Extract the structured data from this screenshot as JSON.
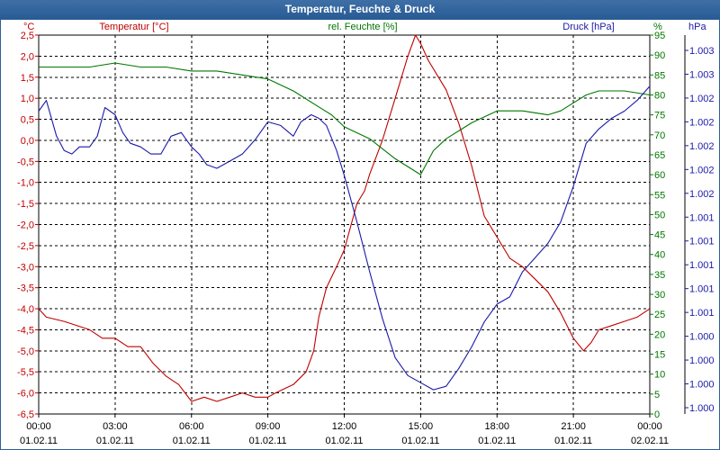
{
  "window": {
    "title": "Temperatur, Feuchte & Druck"
  },
  "chart_data": {
    "type": "line",
    "title": "Temperatur, Feuchte & Druck",
    "grid": true,
    "x_axis": {
      "ticks": [
        {
          "time": "00:00",
          "date": "01.02.11"
        },
        {
          "time": "03:00",
          "date": "01.02.11"
        },
        {
          "time": "06:00",
          "date": "01.02.11"
        },
        {
          "time": "09:00",
          "date": "01.02.11"
        },
        {
          "time": "12:00",
          "date": "01.02.11"
        },
        {
          "time": "15:00",
          "date": "01.02.11"
        },
        {
          "time": "18:00",
          "date": "01.02.11"
        },
        {
          "time": "21:00",
          "date": "01.02.11"
        },
        {
          "time": "00:00",
          "date": "02.02.11"
        }
      ],
      "range_hours": [
        0,
        24
      ]
    },
    "axes": {
      "temperature": {
        "unit": "°C",
        "label": "Temperatur [°C]",
        "color": "#c00000",
        "ylim": [
          -6.5,
          2.5
        ],
        "ticks": [
          "2,5",
          "2,0",
          "1,5",
          "1,0",
          "0,5",
          "0,0",
          "-0,5",
          "-1,0",
          "-1,5",
          "-2,0",
          "-2,5",
          "-3,0",
          "-3,5",
          "-4,0",
          "-4,5",
          "-5,0",
          "-5,5",
          "-6,0",
          "-6,5"
        ]
      },
      "humidity": {
        "unit": "%",
        "label": "rel. Feuchte [%]",
        "color": "#007700",
        "ylim": [
          0,
          95
        ],
        "ticks": [
          "95",
          "90",
          "85",
          "80",
          "75",
          "70",
          "65",
          "60",
          "55",
          "50",
          "45",
          "40",
          "35",
          "30",
          "25",
          "20",
          "15",
          "10",
          "5",
          "0"
        ]
      },
      "pressure": {
        "unit": "hPa",
        "label": "Druck [hPa]",
        "color": "#1a1aa8",
        "ylim": [
          0,
          1
        ],
        "ticks": [
          "1.003",
          "1.003",
          "1.002",
          "1.002",
          "1.002",
          "1.002",
          "1.002",
          "1.001",
          "1.001",
          "1.001",
          "1.001",
          "1.001",
          "1.000",
          "1.000",
          "1.000",
          "1.000"
        ]
      }
    },
    "series": [
      {
        "name": "Temperatur",
        "axis": "temperature",
        "color": "#c00000",
        "points": [
          [
            0,
            -4.0
          ],
          [
            0.3,
            -4.2
          ],
          [
            1,
            -4.3
          ],
          [
            2,
            -4.5
          ],
          [
            2.5,
            -4.7
          ],
          [
            3,
            -4.7
          ],
          [
            3.5,
            -4.9
          ],
          [
            4,
            -4.9
          ],
          [
            4.5,
            -5.3
          ],
          [
            5,
            -5.6
          ],
          [
            5.5,
            -5.8
          ],
          [
            6,
            -6.2
          ],
          [
            6.5,
            -6.1
          ],
          [
            7,
            -6.2
          ],
          [
            7.5,
            -6.1
          ],
          [
            8,
            -6.0
          ],
          [
            8.5,
            -6.1
          ],
          [
            9,
            -6.1
          ],
          [
            9.3,
            -6.0
          ],
          [
            10,
            -5.8
          ],
          [
            10.5,
            -5.5
          ],
          [
            10.8,
            -5.0
          ],
          [
            11,
            -4.2
          ],
          [
            11.3,
            -3.5
          ],
          [
            11.7,
            -3.0
          ],
          [
            12,
            -2.6
          ],
          [
            12.5,
            -1.5
          ],
          [
            12.8,
            -1.2
          ],
          [
            13,
            -0.8
          ],
          [
            13.5,
            0.0
          ],
          [
            14,
            1.0
          ],
          [
            14.5,
            2.0
          ],
          [
            14.8,
            2.5
          ],
          [
            15,
            2.3
          ],
          [
            15.3,
            1.9
          ],
          [
            15.7,
            1.5
          ],
          [
            16,
            1.2
          ],
          [
            16.5,
            0.4
          ],
          [
            17,
            -0.6
          ],
          [
            17.5,
            -1.8
          ],
          [
            18,
            -2.3
          ],
          [
            18.5,
            -2.8
          ],
          [
            19,
            -3.0
          ],
          [
            19.5,
            -3.3
          ],
          [
            20,
            -3.6
          ],
          [
            20.5,
            -4.1
          ],
          [
            21,
            -4.7
          ],
          [
            21.4,
            -5.0
          ],
          [
            21.7,
            -4.8
          ],
          [
            22,
            -4.5
          ],
          [
            22.5,
            -4.4
          ],
          [
            23,
            -4.3
          ],
          [
            23.5,
            -4.2
          ],
          [
            24,
            -4.0
          ]
        ]
      },
      {
        "name": "rel. Feuchte",
        "axis": "humidity",
        "color": "#007700",
        "points": [
          [
            0,
            87
          ],
          [
            1,
            87
          ],
          [
            2,
            87
          ],
          [
            3,
            88
          ],
          [
            4,
            87
          ],
          [
            5,
            87
          ],
          [
            6,
            86
          ],
          [
            7,
            86
          ],
          [
            8,
            85
          ],
          [
            9,
            84
          ],
          [
            10,
            81
          ],
          [
            11,
            77
          ],
          [
            11.5,
            75
          ],
          [
            12,
            72
          ],
          [
            13,
            69
          ],
          [
            14,
            64
          ],
          [
            15,
            60
          ],
          [
            15.5,
            66
          ],
          [
            16,
            69
          ],
          [
            16.5,
            71
          ],
          [
            17,
            73
          ],
          [
            18,
            76
          ],
          [
            19,
            76
          ],
          [
            20,
            75
          ],
          [
            20.5,
            76
          ],
          [
            21,
            78
          ],
          [
            21.5,
            80
          ],
          [
            22,
            81
          ],
          [
            23,
            81
          ],
          [
            24,
            80
          ]
        ]
      },
      {
        "name": "Druck",
        "axis": "pressure",
        "color": "#1a1aa8",
        "points": [
          [
            0,
            0.83
          ],
          [
            0.3,
            0.86
          ],
          [
            0.7,
            0.76
          ],
          [
            1,
            0.72
          ],
          [
            1.3,
            0.71
          ],
          [
            1.6,
            0.73
          ],
          [
            2,
            0.73
          ],
          [
            2.3,
            0.76
          ],
          [
            2.6,
            0.84
          ],
          [
            3,
            0.82
          ],
          [
            3.3,
            0.77
          ],
          [
            3.6,
            0.74
          ],
          [
            4,
            0.73
          ],
          [
            4.4,
            0.71
          ],
          [
            4.8,
            0.71
          ],
          [
            5.2,
            0.76
          ],
          [
            5.6,
            0.77
          ],
          [
            6,
            0.73
          ],
          [
            6.3,
            0.71
          ],
          [
            6.6,
            0.68
          ],
          [
            7,
            0.67
          ],
          [
            7.5,
            0.69
          ],
          [
            8,
            0.71
          ],
          [
            8.5,
            0.75
          ],
          [
            9,
            0.8
          ],
          [
            9.5,
            0.79
          ],
          [
            10,
            0.76
          ],
          [
            10.3,
            0.8
          ],
          [
            10.7,
            0.82
          ],
          [
            11,
            0.81
          ],
          [
            11.3,
            0.79
          ],
          [
            11.7,
            0.72
          ],
          [
            12,
            0.65
          ],
          [
            12.5,
            0.52
          ],
          [
            13,
            0.38
          ],
          [
            13.5,
            0.25
          ],
          [
            14,
            0.14
          ],
          [
            14.5,
            0.09
          ],
          [
            15,
            0.07
          ],
          [
            15.5,
            0.05
          ],
          [
            16,
            0.06
          ],
          [
            16.5,
            0.11
          ],
          [
            17,
            0.17
          ],
          [
            17.5,
            0.24
          ],
          [
            18,
            0.29
          ],
          [
            18.5,
            0.31
          ],
          [
            19,
            0.38
          ],
          [
            19.5,
            0.42
          ],
          [
            20,
            0.46
          ],
          [
            20.5,
            0.52
          ],
          [
            21,
            0.62
          ],
          [
            21.5,
            0.74
          ],
          [
            22,
            0.78
          ],
          [
            22.5,
            0.81
          ],
          [
            23,
            0.83
          ],
          [
            23.5,
            0.86
          ],
          [
            24,
            0.9
          ]
        ]
      }
    ]
  }
}
